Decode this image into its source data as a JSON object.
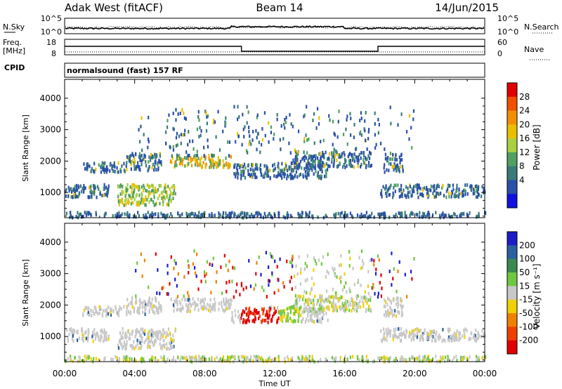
{
  "header": {
    "station": "Adak West (fitACF)",
    "beam": "Beam 14",
    "date": "14/Jun/2015"
  },
  "top_panels": {
    "nsky_label": "N.Sky",
    "nsky_ticks": [
      "10^5",
      "10^0"
    ],
    "nsearch_label": "N.Search",
    "nsearch_ticks": [
      "10^5",
      "10^0"
    ],
    "freq_label": "Freq.",
    "freq_unit": "[MHz]",
    "freq_ticks": [
      "18",
      "8"
    ],
    "nave_label": "Nave",
    "nave_ticks": [
      "60",
      "0"
    ],
    "cpid_label": "CPID",
    "cpid_value": "normalsound (fast) 157 RF"
  },
  "chart_data": [
    {
      "type": "heatmap",
      "name": "power",
      "ylabel": "Slant Range [km]",
      "ylim": [
        200,
        4600
      ],
      "yticks": [
        "1000",
        "2000",
        "3000",
        "4000"
      ],
      "colorbar_label": "Power [dB]",
      "colorbar_ticks": [
        "28",
        "24",
        "20",
        "16",
        "12",
        "8",
        "4"
      ],
      "colorbar_colors": [
        "#e00000",
        "#f05000",
        "#f09000",
        "#e8c000",
        "#a8d040",
        "#50a060",
        "#3a7a78",
        "#2a50a8",
        "#1010e0"
      ],
      "x_range_hours": [
        0,
        24
      ]
    },
    {
      "type": "heatmap",
      "name": "velocity",
      "ylabel": "Slant Range [km]",
      "ylim": [
        200,
        4600
      ],
      "yticks": [
        "1000",
        "2000",
        "3000",
        "4000"
      ],
      "xlabel": "Time UT",
      "xticks": [
        "00:00",
        "04:00",
        "08:00",
        "12:00",
        "16:00",
        "20:00",
        "00:00"
      ],
      "colorbar_label": "Velocity [m s⁻¹]",
      "colorbar_ticks": [
        "200",
        "100",
        "50",
        "15",
        "-15",
        "-50",
        "-100",
        "-200"
      ],
      "colorbar_colors": [
        "#1c1cc8",
        "#2a60a0",
        "#3a8a50",
        "#70c840",
        "#c8c8c8",
        "#f0d000",
        "#f08000",
        "#f04000",
        "#e00000"
      ],
      "x_range_hours": [
        0,
        24
      ]
    }
  ]
}
